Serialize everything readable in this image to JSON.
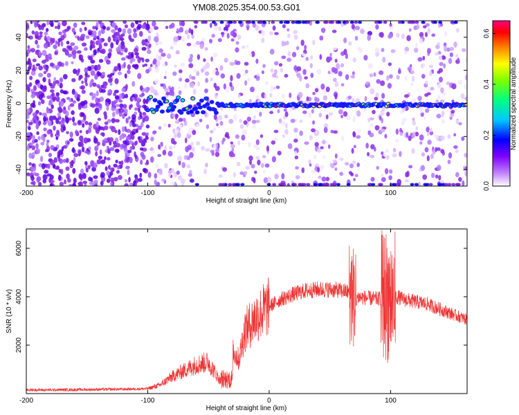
{
  "title": "YM08.2025.354.00.53.G01",
  "chart_data": [
    {
      "type": "heatmap",
      "xlabel": "Height of straight line (km)",
      "ylabel": "Frequency (Hz)",
      "xlim": [
        -200,
        163
      ],
      "ylim": [
        -50,
        50
      ],
      "x_ticks": [
        -200,
        -100,
        0,
        100
      ],
      "y_ticks": [
        -40,
        -20,
        0,
        20,
        40
      ],
      "colorbar": {
        "label": "Normalized spectral amplitude",
        "range": [
          0.0,
          0.65
        ],
        "ticks": [
          0.0,
          0.2,
          0.4,
          0.6
        ],
        "colors": [
          "#ffffff",
          "#8000ff",
          "#0000ff",
          "#00c8ff",
          "#00ff80",
          "#80ff00",
          "#ffff00",
          "#ff8000",
          "#ff0000",
          "#ff0080"
        ]
      },
      "features": {
        "carrier_line": {
          "frequency": -1,
          "x_from": -100,
          "x_to": 163
        },
        "noise_region_x": [
          -200,
          -100
        ]
      }
    },
    {
      "type": "line",
      "xlabel": "Height of straight line (km)",
      "ylabel": "SNR (10 * v/v)",
      "xlim": [
        -200,
        163
      ],
      "ylim": [
        0,
        6800
      ],
      "x_ticks": [
        -200,
        -100,
        0,
        100
      ],
      "y_ticks": [
        2000,
        4000,
        6000
      ],
      "color": "#ee3333",
      "x": [
        -200,
        -180,
        -160,
        -140,
        -120,
        -100,
        -90,
        -80,
        -70,
        -60,
        -50,
        -40,
        -35,
        -30,
        -25,
        -20,
        -10,
        0,
        10,
        20,
        30,
        40,
        50,
        60,
        65,
        68,
        70,
        80,
        90,
        95,
        100,
        102,
        105,
        110,
        120,
        130,
        140,
        150,
        163
      ],
      "y": [
        150,
        150,
        160,
        170,
        180,
        200,
        350,
        700,
        950,
        1200,
        1300,
        500,
        400,
        1800,
        1400,
        2600,
        3200,
        3600,
        3900,
        4100,
        4250,
        4300,
        4300,
        4250,
        4200,
        4100,
        4000,
        3950,
        3900,
        4100,
        4000,
        3900,
        4000,
        3900,
        3800,
        3700,
        3500,
        3300,
        3050
      ]
    }
  ]
}
